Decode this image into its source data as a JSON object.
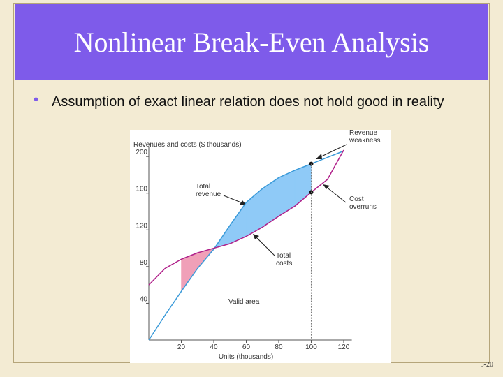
{
  "slide": {
    "title": "Nonlinear Break-Even Analysis",
    "bullet": "Assumption of exact linear relation does not hold good in reality",
    "page_number": "5-20"
  },
  "chart_data": {
    "type": "line",
    "y_label": "Revenues and costs ($ thousands)",
    "x_label": "Units (thousands)",
    "x": [
      0,
      10,
      20,
      30,
      40,
      50,
      60,
      70,
      80,
      90,
      100,
      110,
      120
    ],
    "series": [
      {
        "name": "Total revenue",
        "color": "#3a9ad9",
        "values": [
          0,
          27,
          53,
          78,
          99,
          125,
          150,
          165,
          177,
          185,
          192,
          199,
          206
        ]
      },
      {
        "name": "Total costs",
        "color": "#b0208a",
        "values": [
          60,
          78,
          88,
          95,
          100,
          105,
          113,
          123,
          135,
          146,
          161,
          175,
          207
        ]
      }
    ],
    "xlim": [
      0,
      125
    ],
    "ylim": [
      0,
      210
    ],
    "xticks": [
      20,
      40,
      60,
      80,
      100,
      120
    ],
    "yticks": [
      40,
      80,
      120,
      160,
      200
    ],
    "annotations": [
      {
        "lines": [
          "Revenue",
          "weakness"
        ]
      },
      {
        "lines": [
          "Total",
          "revenue"
        ]
      },
      {
        "lines": [
          "Cost",
          "overruns"
        ]
      },
      {
        "lines": [
          "Total",
          "costs"
        ]
      },
      {
        "lines": [
          "Valid area"
        ]
      }
    ]
  }
}
